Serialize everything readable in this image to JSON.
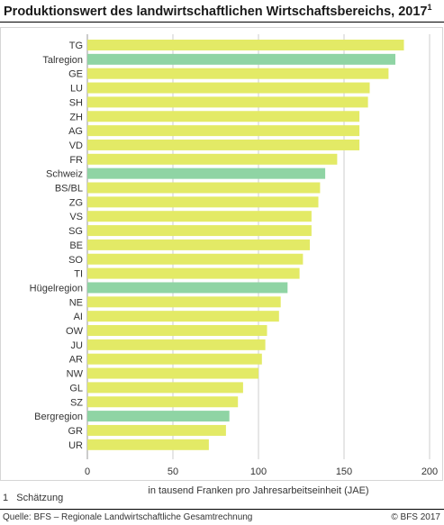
{
  "title_main": "Produktionswert des landwirtschaftlichen Wirtschaftsbereichs, 2017",
  "title_sup": "1",
  "footnote_num": "1",
  "footnote_text": "Schätzung",
  "source": "Quelle: BFS – Regionale Landwirtschaftliche Gesamtrechnung",
  "copyright": "© BFS  2017",
  "colors": {
    "canton": "#e3ea66",
    "region": "#8fd4a4",
    "grid": "#cccccc"
  },
  "chart_data": {
    "type": "bar",
    "orientation": "horizontal",
    "title": "Produktionswert des landwirtschaftlichen Wirtschaftsbereichs, 2017¹",
    "xlabel": "in tausend Franken pro Jahresarbeitseinheit (JAE)",
    "ylabel": "",
    "xlim": [
      0,
      200
    ],
    "xticks": [
      0,
      50,
      100,
      150,
      200
    ],
    "grid": true,
    "categories": [
      "TG",
      "Talregion",
      "GE",
      "LU",
      "SH",
      "ZH",
      "AG",
      "VD",
      "FR",
      "Schweiz",
      "BS/BL",
      "ZG",
      "VS",
      "SG",
      "BE",
      "SO",
      "TI",
      "Hügelregion",
      "NE",
      "AI",
      "OW",
      "JU",
      "AR",
      "NW",
      "GL",
      "SZ",
      "Bergregion",
      "GR",
      "UR"
    ],
    "values": [
      185,
      180,
      176,
      165,
      164,
      159,
      159,
      159,
      146,
      139,
      136,
      135,
      131,
      131,
      130,
      126,
      124,
      117,
      113,
      112,
      105,
      104,
      102,
      100,
      91,
      88,
      83,
      81,
      71
    ],
    "highlight": [
      "Talregion",
      "Schweiz",
      "Hügelregion",
      "Bergregion"
    ]
  }
}
